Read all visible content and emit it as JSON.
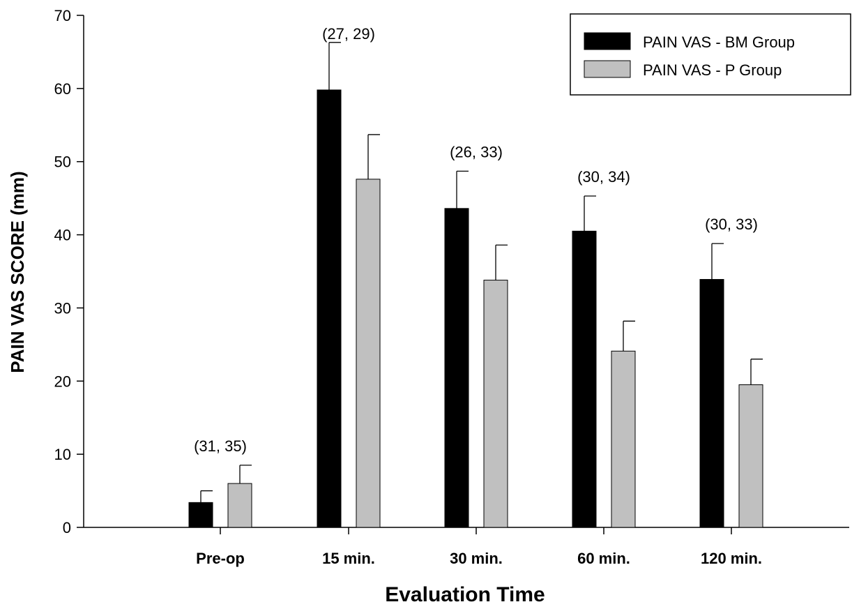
{
  "chart_data": {
    "type": "bar",
    "xlabel": "Evaluation Time",
    "ylabel": "PAIN VAS SCORE (mm)",
    "ylim": [
      0,
      70
    ],
    "yticks": [
      "0",
      "10",
      "20",
      "30",
      "40",
      "50",
      "60",
      "70"
    ],
    "categories": [
      "Pre-op",
      "15 min.",
      "30 min.",
      "60 min.",
      "120 min."
    ],
    "series": [
      {
        "name": "PAIN VAS - BM Group",
        "color": "#000000",
        "values": [
          3.4,
          59.8,
          43.6,
          40.5,
          33.9
        ],
        "error": [
          1.6,
          6.5,
          5.1,
          4.8,
          4.9
        ]
      },
      {
        "name": "PAIN VAS - P Group",
        "color": "#c0c0c0",
        "values": [
          6.0,
          47.6,
          33.8,
          24.1,
          19.5
        ],
        "error": [
          2.5,
          6.1,
          4.8,
          4.1,
          3.5
        ]
      }
    ],
    "annotations": [
      "(31, 35)",
      "(27, 29)",
      "(26, 33)",
      "(30, 34)",
      "(30, 33)"
    ],
    "legend_position": "top-right",
    "grid": false
  }
}
